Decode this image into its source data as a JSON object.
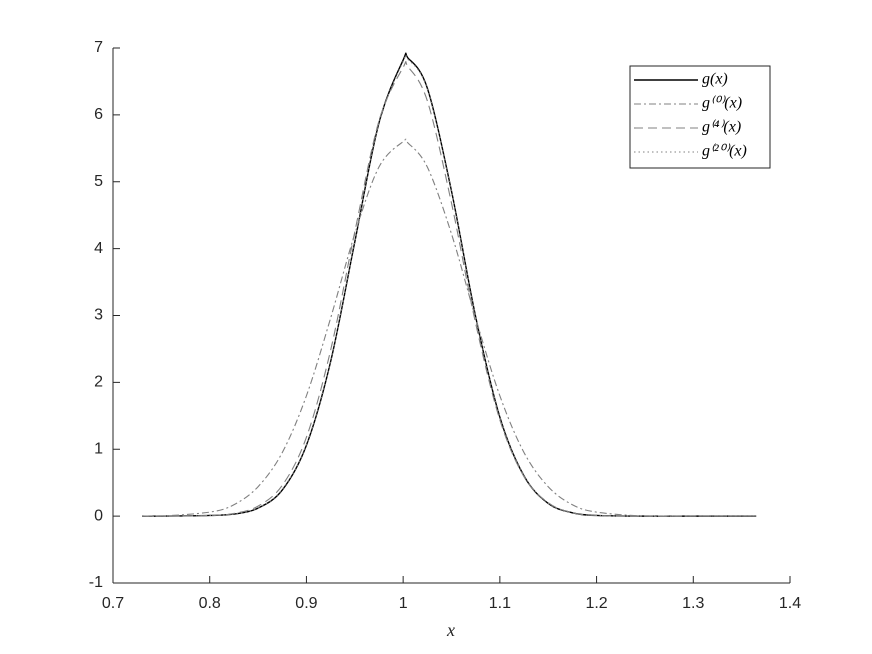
{
  "chart_data": {
    "type": "line",
    "x_label": "x",
    "x": [
      0.73,
      0.75,
      0.8,
      0.825,
      0.85,
      0.875,
      0.9,
      0.925,
      0.95,
      0.975,
      1.0,
      1.005,
      1.025,
      1.05,
      1.075,
      1.1,
      1.125,
      1.15,
      1.175,
      1.2,
      1.25,
      1.3,
      1.365
    ],
    "series": [
      {
        "name": "g(x)",
        "color": "#000000",
        "linestyle": "solid",
        "values": [
          0,
          0,
          0.01,
          0.03,
          0.12,
          0.39,
          1.06,
          2.31,
          4.1,
          5.88,
          6.82,
          6.85,
          6.4,
          4.86,
          2.98,
          1.48,
          0.6,
          0.19,
          0.05,
          0.01,
          0,
          0,
          0
        ]
      },
      {
        "name": "g⁽⁰⁾(x)",
        "color": "#808080",
        "linestyle": "dashdot",
        "values": [
          0,
          0,
          0.06,
          0.17,
          0.44,
          0.95,
          1.8,
          2.96,
          4.22,
          5.22,
          5.6,
          5.58,
          5.22,
          4.22,
          2.96,
          1.8,
          0.95,
          0.44,
          0.17,
          0.06,
          0,
          0,
          0
        ]
      },
      {
        "name": "g⁽⁴⁾(x)",
        "color": "#808080",
        "linestyle": "dashed",
        "values": [
          0,
          0,
          0.01,
          0.04,
          0.15,
          0.46,
          1.18,
          2.48,
          4.25,
          5.91,
          6.71,
          6.72,
          6.21,
          4.68,
          2.88,
          1.44,
          0.59,
          0.2,
          0.05,
          0.01,
          0,
          0,
          0
        ]
      },
      {
        "name": "g⁽²⁰⁾(x)",
        "color": "#808080",
        "linestyle": "dotted",
        "values": [
          0,
          0,
          0.01,
          0.03,
          0.12,
          0.4,
          1.07,
          2.32,
          4.1,
          5.87,
          6.8,
          6.83,
          6.39,
          4.86,
          2.99,
          1.49,
          0.61,
          0.19,
          0.05,
          0.01,
          0,
          0,
          0
        ]
      }
    ],
    "xlim": [
      0.7,
      1.4
    ],
    "xticks": [
      0.7,
      0.8,
      0.9,
      1,
      1.1,
      1.2,
      1.3,
      1.4
    ],
    "ylim": [
      -1,
      7
    ],
    "yticks": [
      -1,
      0,
      1,
      2,
      3,
      4,
      5,
      6,
      7
    ],
    "grid": false,
    "legend": "top-right"
  }
}
